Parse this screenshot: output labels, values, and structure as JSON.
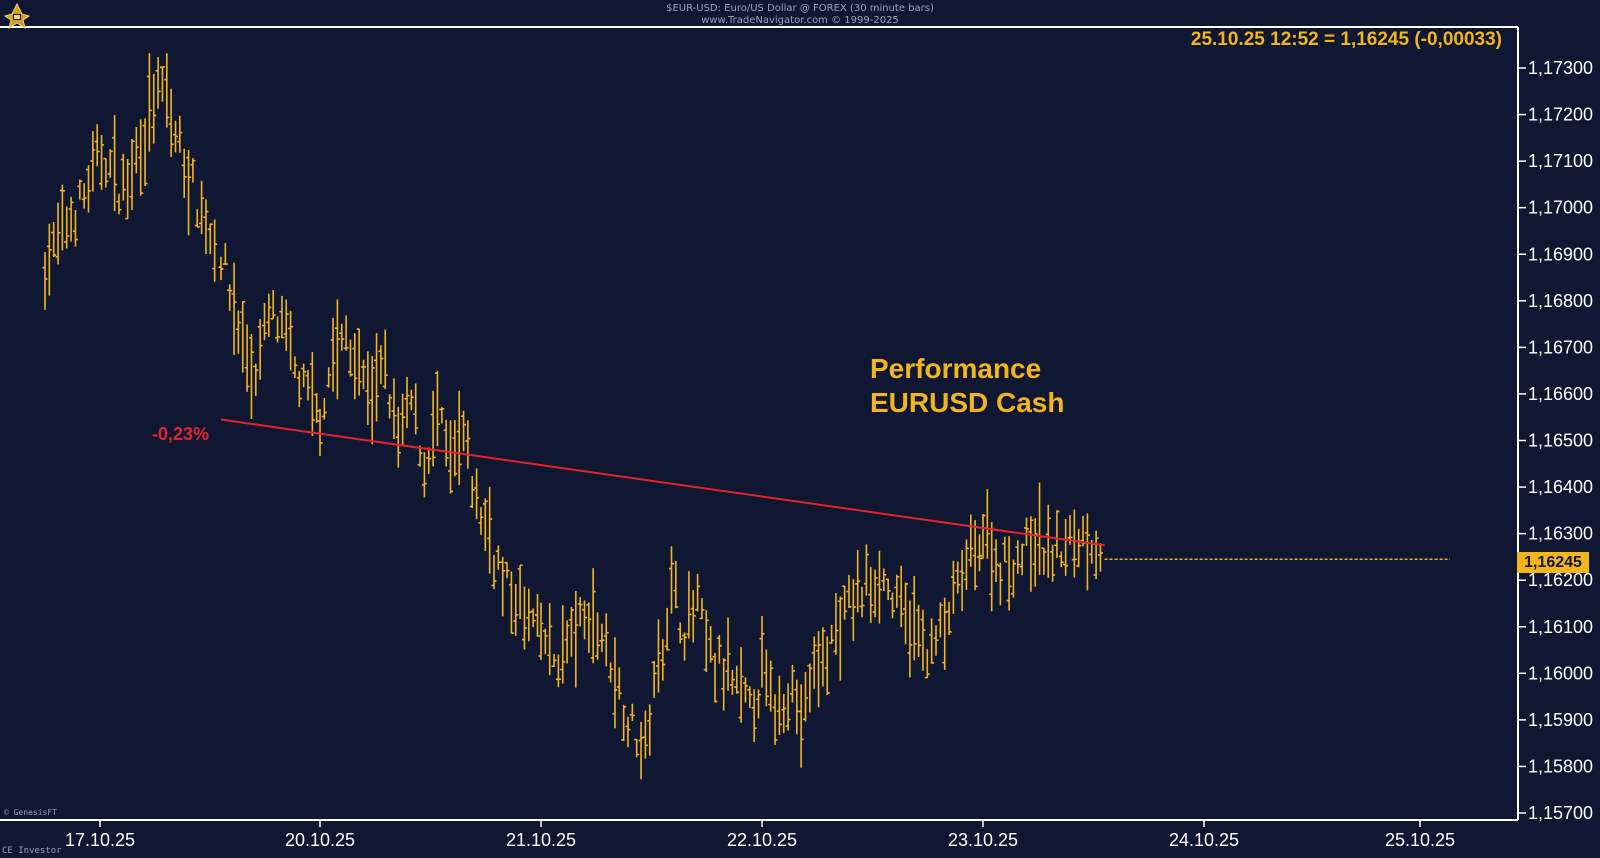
{
  "header": {
    "line1": "$EUR-USD: Euro/US Dollar @ FOREX (30 minute bars)",
    "line2": "www.TradeNavigator.com © 1999-2025"
  },
  "quote_label": "25.10.25 12:52 = 1,16245 (-0,00033)",
  "annotation": {
    "line1": "Performance",
    "line2": "EURUSD Cash"
  },
  "performance_label": "-0,23%",
  "last_price_label": "1,16245",
  "footer": {
    "watermark": "© GenesisFT",
    "source": "CE Investor"
  },
  "icons": {
    "logo": "trade-navigator-logo-icon"
  },
  "colors": {
    "background": "#0f1733",
    "bars": "#f3b51e",
    "trendline": "#e5232c",
    "axis_text": "#ffffff",
    "frame": "#ffffff"
  },
  "chart_data": {
    "type": "ohlc-bar",
    "title": "$EUR-USD: Euro/US Dollar @ FOREX (30 minute bars)",
    "xlabel": "",
    "ylabel": "",
    "ylim": [
      1.1567,
      1.1736
    ],
    "y_ticks": [
      1.157,
      1.158,
      1.159,
      1.16,
      1.161,
      1.162,
      1.163,
      1.164,
      1.165,
      1.166,
      1.167,
      1.168,
      1.169,
      1.17,
      1.171,
      1.172,
      1.173
    ],
    "y_tick_labels": [
      "1,15700",
      "1,15800",
      "1,15900",
      "1,16000",
      "1,16100",
      "1,16200",
      "1,16300",
      "1,16400",
      "1,16500",
      "1,16600",
      "1,16700",
      "1,16800",
      "1,16900",
      "1,17000",
      "1,17100",
      "1,17200",
      "1,17300"
    ],
    "x_tick_labels": [
      "17.10.25",
      "20.10.25",
      "21.10.25",
      "22.10.25",
      "23.10.25",
      "24.10.25",
      "25.10.25"
    ],
    "grid": false,
    "trendline": {
      "start_value": 1.16545,
      "end_value": 1.16275,
      "change": "-0,23%"
    },
    "last_price": 1.16245,
    "series": [
      {
        "name": "EURUSD",
        "segments": [
          {
            "from_tick": -0.25,
            "to_tick": 0.55,
            "path": [
              1.1688,
              1.1695,
              1.1702,
              1.1712,
              1.1703,
              1.1715,
              1.1726,
              1.1712,
              1.17,
              1.169
            ]
          },
          {
            "from_tick": 0.55,
            "to_tick": 1.0,
            "path": [
              1.169,
              1.1675,
              1.1663,
              1.1678,
              1.167,
              1.166,
              1.1655
            ]
          },
          {
            "from_tick": 1.0,
            "to_tick": 2.0,
            "path": [
              1.1655,
              1.1668,
              1.1672,
              1.1665,
              1.166,
              1.1665,
              1.165,
              1.1658,
              1.1645,
              1.1655,
              1.1645,
              1.165,
              1.1637,
              1.163,
              1.162,
              1.1615,
              1.1612,
              1.1608
            ]
          },
          {
            "from_tick": 2.0,
            "to_tick": 3.0,
            "path": [
              1.1608,
              1.1603,
              1.1606,
              1.161,
              1.1612,
              1.1606,
              1.1596,
              1.1588,
              1.1584,
              1.1603,
              1.1618,
              1.161,
              1.1614,
              1.1603,
              1.16,
              1.1596,
              1.1592,
              1.16
            ]
          },
          {
            "from_tick": 3.0,
            "to_tick": 4.0,
            "path": [
              1.16,
              1.1592,
              1.1598,
              1.159,
              1.16,
              1.1605,
              1.161,
              1.1616,
              1.1618,
              1.1622,
              1.1616,
              1.1612,
              1.1608,
              1.1605,
              1.161,
              1.1618,
              1.1625,
              1.163
            ]
          },
          {
            "from_tick": 4.0,
            "to_tick": 4.55,
            "path": [
              1.163,
              1.1623,
              1.1625,
              1.1628,
              1.1626,
              1.1628,
              1.163,
              1.1625
            ]
          }
        ]
      }
    ]
  }
}
